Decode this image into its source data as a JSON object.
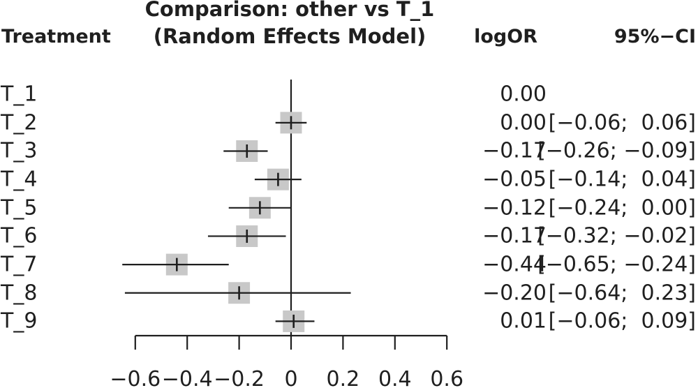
{
  "header": {
    "treatment_col": "Treatment",
    "title_line1": "Comparison: other vs T_1",
    "title_line2": "(Random Effects Model)",
    "logor_col": "logOR",
    "ci_col": "95%−CI"
  },
  "rows": [
    {
      "treatment": "T_1",
      "logor": "0.00",
      "ci": ""
    },
    {
      "treatment": "T_2",
      "logor": "0.00",
      "ci": "[−0.06;  0.06]"
    },
    {
      "treatment": "T_3",
      "logor": "−0.17",
      "ci": "[−0.26; −0.09]"
    },
    {
      "treatment": "T_4",
      "logor": "−0.05",
      "ci": "[−0.14;  0.04]"
    },
    {
      "treatment": "T_5",
      "logor": "−0.12",
      "ci": "[−0.24;  0.00]"
    },
    {
      "treatment": "T_6",
      "logor": "−0.17",
      "ci": "[−0.32; −0.02]"
    },
    {
      "treatment": "T_7",
      "logor": "−0.44",
      "ci": "[−0.65; −0.24]"
    },
    {
      "treatment": "T_8",
      "logor": "−0.20",
      "ci": "[−0.64;  0.23]"
    },
    {
      "treatment": "T_9",
      "logor": "0.01",
      "ci": "[−0.06;  0.09]"
    }
  ],
  "chart_data": {
    "type": "forest",
    "title": "Comparison: other vs T_1 (Random Effects Model)",
    "reference_treatment": "T_1",
    "effect_measure": "logOR",
    "x_axis": {
      "min": -0.6,
      "max": 0.6,
      "ticks": [
        -0.6,
        -0.4,
        -0.2,
        0,
        0.2,
        0.4,
        0.6
      ],
      "tick_labels": [
        "−0.6",
        "−0.4",
        "−0.2",
        "0",
        "0.2",
        "0.4",
        "0.6"
      ],
      "zero_line": 0,
      "grid": false
    },
    "points": [
      {
        "treatment": "T_1",
        "estimate": 0.0,
        "low": null,
        "high": null
      },
      {
        "treatment": "T_2",
        "estimate": 0.0,
        "low": -0.06,
        "high": 0.06
      },
      {
        "treatment": "T_3",
        "estimate": -0.17,
        "low": -0.26,
        "high": -0.09
      },
      {
        "treatment": "T_4",
        "estimate": -0.05,
        "low": -0.14,
        "high": 0.04
      },
      {
        "treatment": "T_5",
        "estimate": -0.12,
        "low": -0.24,
        "high": 0.0
      },
      {
        "treatment": "T_6",
        "estimate": -0.17,
        "low": -0.32,
        "high": -0.02
      },
      {
        "treatment": "T_7",
        "estimate": -0.44,
        "low": -0.65,
        "high": -0.24
      },
      {
        "treatment": "T_8",
        "estimate": -0.2,
        "low": -0.64,
        "high": 0.23
      },
      {
        "treatment": "T_9",
        "estimate": 0.01,
        "low": -0.06,
        "high": 0.09
      }
    ],
    "square_size_px": 31,
    "colors": {
      "square": "#c8c8c8",
      "line": "#1e1e1e",
      "text": "#1f1f1f",
      "background": "#ffffff"
    }
  }
}
